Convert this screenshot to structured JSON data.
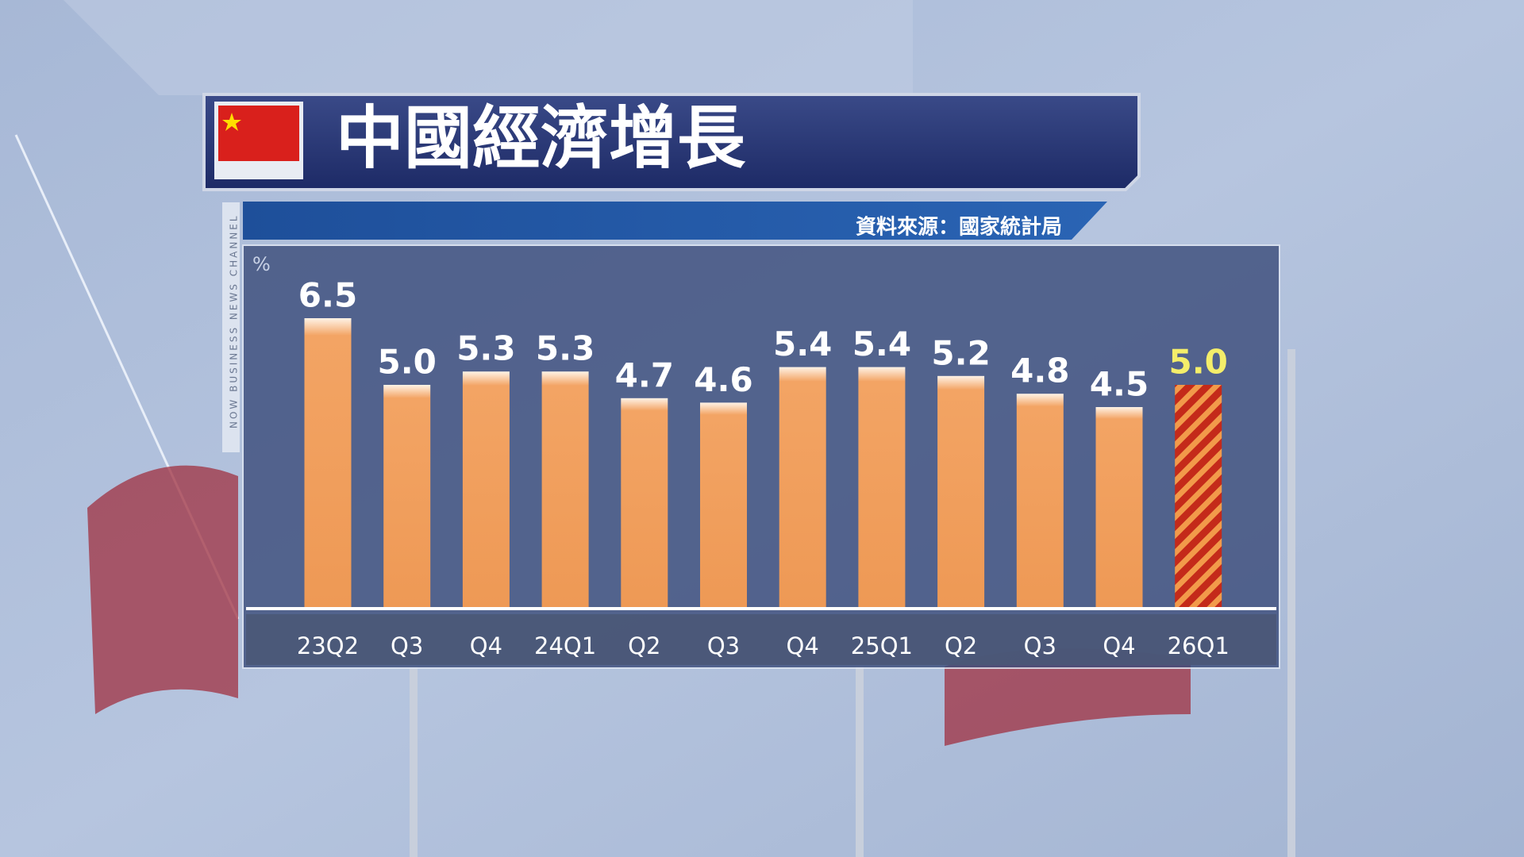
{
  "chart_data": {
    "type": "bar",
    "title": "中國經濟增長",
    "source": "資料來源：國家統計局",
    "unit": "%",
    "channel": "NOW BUSINESS NEWS CHANNEL",
    "categories": [
      "23Q2",
      "Q3",
      "Q4",
      "24Q1",
      "Q2",
      "Q3",
      "Q4",
      "25Q1",
      "Q2",
      "Q3",
      "Q4",
      "26Q1"
    ],
    "values": [
      6.5,
      5.0,
      5.3,
      5.3,
      4.7,
      4.6,
      5.4,
      5.4,
      5.2,
      4.8,
      4.5,
      5.0
    ],
    "value_labels": [
      "6.5",
      "5.0",
      "5.3",
      "5.3",
      "4.7",
      "4.6",
      "5.4",
      "5.4",
      "5.2",
      "4.8",
      "4.5",
      "5.0"
    ],
    "colors": [
      "#f09c58",
      "#f09c58",
      "#f09c58",
      "#f09c58",
      "#f09c58",
      "#f09c58",
      "#f09c58",
      "#f09c58",
      "#f09c58",
      "#f09c58",
      "#f09c58",
      "hatch"
    ],
    "label_colors": [
      "#ffffff",
      "#ffffff",
      "#ffffff",
      "#ffffff",
      "#ffffff",
      "#ffffff",
      "#ffffff",
      "#ffffff",
      "#ffffff",
      "#ffffff",
      "#ffffff",
      "#f4ee6a"
    ],
    "ylim": [
      0,
      8
    ]
  }
}
